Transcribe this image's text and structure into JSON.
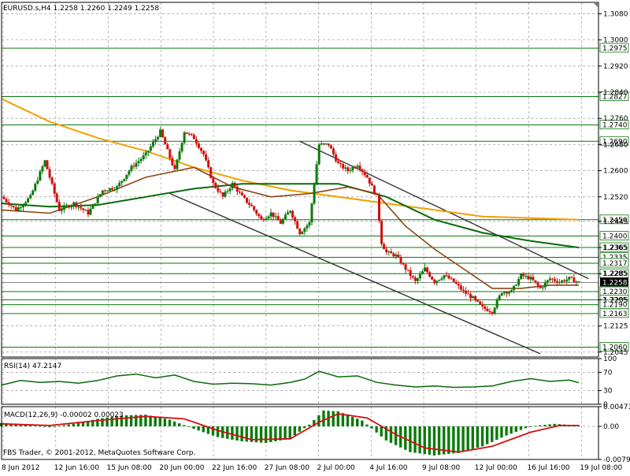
{
  "window": {
    "symbol_header": "EURUSD.s,H4  1.2258 1.2260 1.2249 1.2258",
    "copyright": "FBS Trader, © 2001-2012, MetaQuotes Software Corp."
  },
  "panels": {
    "rsi_label": "RSI(14) 47.2147",
    "macd_label": "MACD(12,26,9) -0.00002 0.00023"
  },
  "colors": {
    "candle_up": "#0a7a0a",
    "candle_down": "#d01010",
    "ma_fast": "#8b4513",
    "ma_mid": "#0a6a0a",
    "ma_slow": "#f0a000",
    "level_line": "#0a7a0a",
    "channel_line": "#333333",
    "rsi_line": "#0a6a0a",
    "macd_hist": "#0a7a0a",
    "macd_signal": "#d01010"
  },
  "chart_data": [
    {
      "type": "candlestick",
      "title": "EURUSD.s,H4",
      "y_ticks": [
        "1.3080",
        "1.3000",
        "1.2920",
        "1.2840",
        "1.2760",
        "1.2680",
        "1.2600",
        "1.2520",
        "1.2445",
        "1.2365",
        "1.2285",
        "1.2205",
        "1.2125",
        "1.2045"
      ],
      "ylim": [
        1.203,
        1.3115
      ],
      "x_ticks": [
        "8 Jun 2012",
        "12 Jun 16:00",
        "15 Jun 08:00",
        "20 Jun 00:00",
        "22 Jun 16:00",
        "27 Jun 08:00",
        "2 Jul 00:00",
        "4 Jul 16:00",
        "9 Jul 08:00",
        "12 Jul 00:00",
        "16 Jul 16:00",
        "19 Jul 08:00"
      ],
      "levels": [
        {
          "value": 1.2975,
          "label": "1.2975"
        },
        {
          "value": 1.2827,
          "label": "1.2827"
        },
        {
          "value": 1.274,
          "label": "1.2740"
        },
        {
          "value": 1.269,
          "label": "1.2690"
        },
        {
          "value": 1.245,
          "label": "1.2450"
        },
        {
          "value": 1.24,
          "label": "1.2400"
        },
        {
          "value": 1.2365,
          "label": "1.2365"
        },
        {
          "value": 1.2335,
          "label": "1.2335"
        },
        {
          "value": 1.2317,
          "label": "1.2317"
        },
        {
          "value": 1.2285,
          "label": "1.2285"
        },
        {
          "value": 1.223,
          "label": "1.2230"
        },
        {
          "value": 1.2205,
          "label": "1.2205"
        },
        {
          "value": 1.219,
          "label": "1.2190"
        },
        {
          "value": 1.2163,
          "label": "1.2163"
        },
        {
          "value": 1.206,
          "label": "1.2060"
        }
      ],
      "current_price": {
        "value": 1.2258,
        "label": "1.2258"
      },
      "price_path": [
        [
          0,
          1.252
        ],
        [
          3,
          1.248
        ],
        [
          6,
          1.252
        ],
        [
          9,
          1.263
        ],
        [
          12,
          1.248
        ],
        [
          15,
          1.25
        ],
        [
          18,
          1.247
        ],
        [
          21,
          1.254
        ],
        [
          24,
          1.255
        ],
        [
          27,
          1.261
        ],
        [
          30,
          1.265
        ],
        [
          33,
          1.272
        ],
        [
          36,
          1.26
        ],
        [
          38,
          1.272
        ],
        [
          40,
          1.27
        ],
        [
          42,
          1.265
        ],
        [
          44,
          1.256
        ],
        [
          46,
          1.252
        ],
        [
          48,
          1.256
        ],
        [
          50,
          1.252
        ],
        [
          52,
          1.249
        ],
        [
          54,
          1.245
        ],
        [
          56,
          1.247
        ],
        [
          58,
          1.244
        ],
        [
          60,
          1.248
        ],
        [
          62,
          1.241
        ],
        [
          64,
          1.244
        ],
        [
          66,
          1.268
        ],
        [
          68,
          1.268
        ],
        [
          70,
          1.262
        ],
        [
          72,
          1.26
        ],
        [
          74,
          1.262
        ],
        [
          76,
          1.258
        ],
        [
          78,
          1.252
        ],
        [
          79,
          1.238
        ],
        [
          80,
          1.235
        ],
        [
          82,
          1.234
        ],
        [
          84,
          1.23
        ],
        [
          86,
          1.226
        ],
        [
          88,
          1.23
        ],
        [
          90,
          1.226
        ],
        [
          92,
          1.228
        ],
        [
          94,
          1.226
        ],
        [
          96,
          1.223
        ],
        [
          98,
          1.221
        ],
        [
          100,
          1.218
        ],
        [
          102,
          1.217
        ],
        [
          104,
          1.223
        ],
        [
          106,
          1.223
        ],
        [
          108,
          1.228
        ],
        [
          110,
          1.227
        ],
        [
          112,
          1.224
        ],
        [
          114,
          1.227
        ],
        [
          116,
          1.226
        ],
        [
          118,
          1.227
        ],
        [
          120,
          1.2258
        ]
      ],
      "ma_fast": [
        [
          0,
          1.248
        ],
        [
          10,
          1.247
        ],
        [
          20,
          1.252
        ],
        [
          30,
          1.258
        ],
        [
          40,
          1.261
        ],
        [
          48,
          1.255
        ],
        [
          56,
          1.252
        ],
        [
          64,
          1.253
        ],
        [
          72,
          1.255
        ],
        [
          78,
          1.253
        ],
        [
          84,
          1.243
        ],
        [
          90,
          1.236
        ],
        [
          96,
          1.23
        ],
        [
          102,
          1.224
        ],
        [
          108,
          1.224
        ],
        [
          114,
          1.225
        ],
        [
          120,
          1.225
        ]
      ],
      "ma_mid": [
        [
          0,
          1.25
        ],
        [
          10,
          1.249
        ],
        [
          20,
          1.2495
        ],
        [
          30,
          1.252
        ],
        [
          40,
          1.2545
        ],
        [
          50,
          1.256
        ],
        [
          60,
          1.256
        ],
        [
          70,
          1.256
        ],
        [
          80,
          1.252
        ],
        [
          90,
          1.245
        ],
        [
          100,
          1.241
        ],
        [
          110,
          1.2385
        ],
        [
          120,
          1.2365
        ]
      ],
      "ma_slow": [
        [
          0,
          1.282
        ],
        [
          10,
          1.275
        ],
        [
          20,
          1.27
        ],
        [
          30,
          1.266
        ],
        [
          40,
          1.261
        ],
        [
          50,
          1.257
        ],
        [
          60,
          1.254
        ],
        [
          70,
          1.252
        ],
        [
          80,
          1.25
        ],
        [
          90,
          1.248
        ],
        [
          100,
          1.246
        ],
        [
          110,
          1.2455
        ],
        [
          120,
          1.245
        ]
      ],
      "channel_lines": [
        [
          [
            35,
            1.253
          ],
          [
            112,
            1.204
          ]
        ],
        [
          [
            62,
            1.269
          ],
          [
            122,
            1.227
          ]
        ]
      ]
    },
    {
      "type": "line",
      "title": "RSI(14) 47.2147",
      "y_ticks": [
        "100",
        "70",
        "30",
        "0"
      ],
      "ylim": [
        0,
        100
      ],
      "values": [
        [
          0,
          42
        ],
        [
          4,
          52
        ],
        [
          8,
          48
        ],
        [
          12,
          50
        ],
        [
          16,
          46
        ],
        [
          20,
          52
        ],
        [
          24,
          62
        ],
        [
          28,
          66
        ],
        [
          32,
          58
        ],
        [
          36,
          64
        ],
        [
          40,
          50
        ],
        [
          44,
          44
        ],
        [
          48,
          46
        ],
        [
          52,
          45
        ],
        [
          56,
          42
        ],
        [
          60,
          48
        ],
        [
          63,
          55
        ],
        [
          66,
          72
        ],
        [
          70,
          60
        ],
        [
          74,
          62
        ],
        [
          78,
          48
        ],
        [
          82,
          42
        ],
        [
          86,
          38
        ],
        [
          90,
          40
        ],
        [
          94,
          37
        ],
        [
          98,
          38
        ],
        [
          102,
          40
        ],
        [
          106,
          50
        ],
        [
          110,
          56
        ],
        [
          114,
          50
        ],
        [
          118,
          53
        ],
        [
          120,
          47
        ]
      ]
    },
    {
      "type": "bar+line",
      "title": "MACD(12,26,9) -0.00002 0.00023",
      "y_ticks": [
        "0.00473",
        "0.00",
        "-0.00796"
      ],
      "ylim": [
        -0.00796,
        0.00473
      ],
      "histogram": [
        [
          0,
          0.0008
        ],
        [
          5,
          0.0004
        ],
        [
          10,
          -0.0002
        ],
        [
          15,
          0.0006
        ],
        [
          20,
          0.0018
        ],
        [
          25,
          0.0026
        ],
        [
          30,
          0.0028
        ],
        [
          35,
          0.0016
        ],
        [
          40,
          -0.0006
        ],
        [
          45,
          -0.0026
        ],
        [
          50,
          -0.0036
        ],
        [
          55,
          -0.004
        ],
        [
          60,
          -0.003
        ],
        [
          64,
          0.0004
        ],
        [
          67,
          0.0038
        ],
        [
          70,
          0.0036
        ],
        [
          75,
          0.0014
        ],
        [
          80,
          -0.0034
        ],
        [
          85,
          -0.0062
        ],
        [
          90,
          -0.007
        ],
        [
          95,
          -0.0064
        ],
        [
          100,
          -0.0048
        ],
        [
          105,
          -0.0022
        ],
        [
          110,
          0.0
        ],
        [
          115,
          0.0006
        ],
        [
          120,
          0.0002
        ]
      ],
      "signal": [
        [
          0,
          0.0006
        ],
        [
          10,
          0.0002
        ],
        [
          20,
          0.0014
        ],
        [
          30,
          0.0024
        ],
        [
          38,
          0.0018
        ],
        [
          45,
          -0.001
        ],
        [
          52,
          -0.0032
        ],
        [
          60,
          -0.003
        ],
        [
          66,
          0.001
        ],
        [
          70,
          0.003
        ],
        [
          76,
          0.002
        ],
        [
          82,
          -0.002
        ],
        [
          88,
          -0.0052
        ],
        [
          95,
          -0.0062
        ],
        [
          102,
          -0.0048
        ],
        [
          110,
          -0.0014
        ],
        [
          116,
          0.0002
        ],
        [
          120,
          0.0002
        ]
      ]
    }
  ]
}
